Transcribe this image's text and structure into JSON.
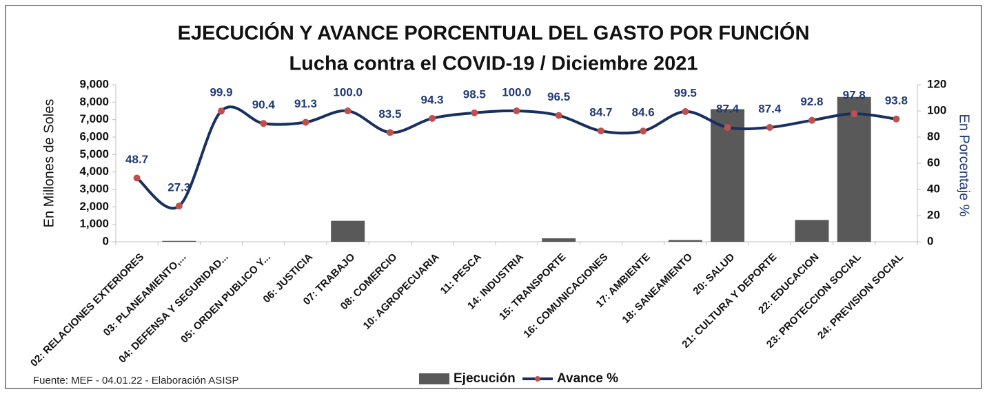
{
  "chart_data": {
    "type": "bar-line",
    "title": "EJECUCIÓN Y AVANCE  PORCENTUAL DEL GASTO POR FUNCIÓN",
    "subtitle": "Lucha contra el COVID-19 / Diciembre 2021",
    "ylabel": "En Millones de Soles",
    "y2label": "En Porcentaje %",
    "source": "Fuente: MEF - 04.01.22 - Elaboración ASISP",
    "categories": [
      "02: RELACIONES EXTERIORES",
      "03: PLANEAMIENTO,...",
      "04: DEFENSA Y SEGURIDAD...",
      "05: ORDEN PUBLICO Y...",
      "06: JUSTICIA",
      "07: TRABAJO",
      "08: COMERCIO",
      "10: AGROPECUARIA",
      "11: PESCA",
      "14: INDUSTRIA",
      "15: TRANSPORTE",
      "16: COMUNICACIONES",
      "17: AMBIENTE",
      "18: SANEAMIENTO",
      "20: SALUD",
      "21: CULTURA Y DEPORTE",
      "22: EDUCACION",
      "23: PROTECCION SOCIAL",
      "24: PREVISION SOCIAL"
    ],
    "series": [
      {
        "name": "Ejecución",
        "type": "bar",
        "axis": "y",
        "color": "#595959",
        "values": [
          0,
          50,
          0,
          0,
          0,
          1200,
          0,
          0,
          0,
          0,
          200,
          0,
          0,
          100,
          7600,
          0,
          1250,
          8300,
          0
        ]
      },
      {
        "name": "Avance %",
        "type": "line",
        "axis": "y2",
        "color": "#17305f",
        "marker_color": "#c0504d",
        "label_color": "#1f3a75",
        "values": [
          48.7,
          27.3,
          99.9,
          90.4,
          91.3,
          100.0,
          83.5,
          94.3,
          98.5,
          100.0,
          96.5,
          84.7,
          84.6,
          99.5,
          87.4,
          87.4,
          92.8,
          97.8,
          93.8
        ],
        "value_labels": [
          "48.7",
          "27.3",
          "99.9",
          "90.4",
          "91.3",
          "100.0",
          "83.5",
          "94.3",
          "98.5",
          "100.0",
          "96.5",
          "84.7",
          "84.6",
          "99.5",
          "87.4",
          "87.4",
          "92.8",
          "97.8",
          "93.8"
        ]
      }
    ],
    "ylim": [
      0,
      9000
    ],
    "yticks": [
      0,
      {
        "value": 1000,
        "label": "1,000"
      },
      {
        "value": 2000,
        "label": "2,000"
      },
      {
        "value": 3000,
        "label": "3,000"
      },
      {
        "value": 4000,
        "label": "4,000"
      },
      {
        "value": 5000,
        "label": "5,000"
      },
      {
        "value": 6000,
        "label": "6,000"
      },
      {
        "value": 7000,
        "label": "7,000"
      },
      {
        "value": 8000,
        "label": "8,000"
      },
      {
        "value": 9000,
        "label": "9,000"
      }
    ],
    "y2lim": [
      0,
      120
    ],
    "y2ticks": [
      0,
      20,
      40,
      60,
      80,
      100,
      120
    ],
    "grid": false,
    "legend": "bottom"
  }
}
